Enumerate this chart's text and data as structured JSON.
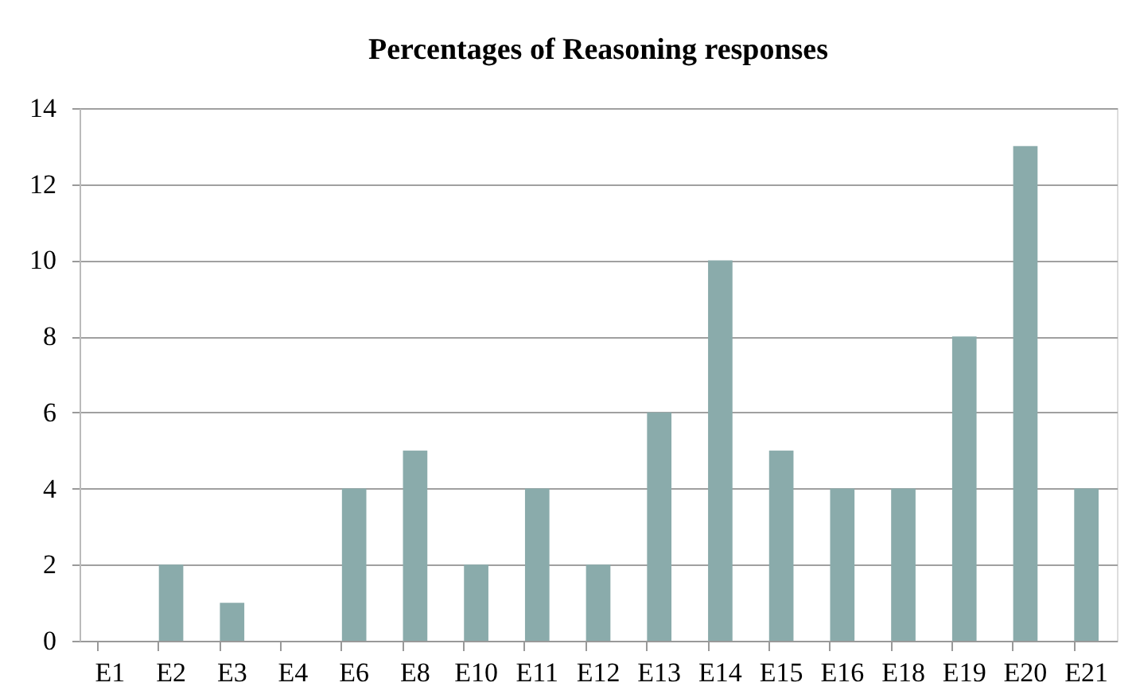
{
  "chart_data": {
    "type": "bar",
    "title": "Percentages of Reasoning responses",
    "categories": [
      "E1",
      "E2",
      "E3",
      "E4",
      "E6",
      "E8",
      "E10",
      "E11",
      "E12",
      "E13",
      "E14",
      "E15",
      "E16",
      "E18",
      "E19",
      "E20",
      "E21"
    ],
    "values": [
      0,
      2,
      1,
      0,
      4,
      5,
      2,
      4,
      2,
      6,
      10,
      5,
      4,
      4,
      8,
      13,
      4
    ],
    "color": "#8aabab",
    "ylim": [
      0,
      14
    ],
    "yticks": [
      0,
      2,
      4,
      6,
      8,
      10,
      12,
      14
    ],
    "grid": "y"
  }
}
